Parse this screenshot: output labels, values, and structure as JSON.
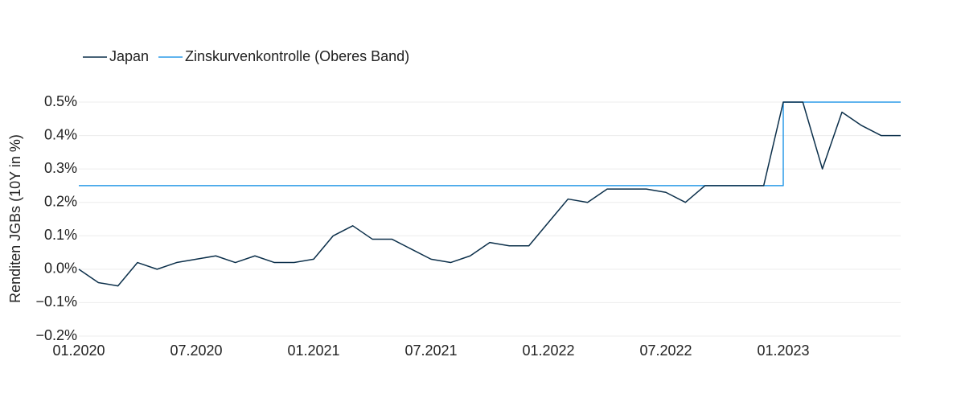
{
  "chart_data": {
    "type": "line",
    "y_label": "Renditen JGBs (10Y in %)",
    "x": [
      "2020-01",
      "2020-02",
      "2020-03",
      "2020-04",
      "2020-05",
      "2020-06",
      "2020-07",
      "2020-08",
      "2020-09",
      "2020-10",
      "2020-11",
      "2020-12",
      "2021-01",
      "2021-02",
      "2021-03",
      "2021-04",
      "2021-05",
      "2021-06",
      "2021-07",
      "2021-08",
      "2021-09",
      "2021-10",
      "2021-11",
      "2021-12",
      "2022-01",
      "2022-02",
      "2022-03",
      "2022-04",
      "2022-05",
      "2022-06",
      "2022-07",
      "2022-08",
      "2022-09",
      "2022-10",
      "2022-11",
      "2022-12",
      "2023-01",
      "2023-02",
      "2023-03",
      "2023-04",
      "2023-05",
      "2023-06",
      "2023-07"
    ],
    "series": [
      {
        "name": "Japan",
        "color": "#0b2f4a",
        "line_shape": "linear",
        "values": [
          0.0,
          -0.04,
          -0.05,
          0.02,
          0.0,
          0.02,
          0.03,
          0.04,
          0.02,
          0.04,
          0.02,
          0.02,
          0.03,
          0.1,
          0.13,
          0.09,
          0.09,
          0.06,
          0.03,
          0.02,
          0.04,
          0.08,
          0.07,
          0.07,
          0.14,
          0.21,
          0.2,
          0.24,
          0.24,
          0.24,
          0.23,
          0.2,
          0.25,
          0.25,
          0.25,
          0.25,
          0.5,
          0.5,
          0.3,
          0.47,
          0.43,
          0.4,
          0.4
        ]
      },
      {
        "name": "Zinskurvenkontrolle (Oberes Band)",
        "color": "#2b9be8",
        "line_shape": "hv",
        "values": [
          0.25,
          0.25,
          0.25,
          0.25,
          0.25,
          0.25,
          0.25,
          0.25,
          0.25,
          0.25,
          0.25,
          0.25,
          0.25,
          0.25,
          0.25,
          0.25,
          0.25,
          0.25,
          0.25,
          0.25,
          0.25,
          0.25,
          0.25,
          0.25,
          0.25,
          0.25,
          0.25,
          0.25,
          0.25,
          0.25,
          0.25,
          0.25,
          0.25,
          0.25,
          0.25,
          0.25,
          0.5,
          0.5,
          0.5,
          0.5,
          0.5,
          0.5,
          0.5
        ]
      }
    ],
    "xticks": [
      {
        "value": "2020-01",
        "label": "01.2020"
      },
      {
        "value": "2020-07",
        "label": "07.2020"
      },
      {
        "value": "2021-01",
        "label": "01.2021"
      },
      {
        "value": "2021-07",
        "label": "07.2021"
      },
      {
        "value": "2022-01",
        "label": "01.2022"
      },
      {
        "value": "2022-07",
        "label": "07.2022"
      },
      {
        "value": "2023-01",
        "label": "01.2023"
      }
    ],
    "ylim": [
      -0.2,
      0.5
    ],
    "yticks": [
      {
        "value": -0.2,
        "label": "−0.2%"
      },
      {
        "value": -0.1,
        "label": "−0.1%"
      },
      {
        "value": 0,
        "label": "0.0%"
      },
      {
        "value": 0.1,
        "label": "0.1%"
      },
      {
        "value": 0.2,
        "label": "0.2%"
      },
      {
        "value": 0.3,
        "label": "0.3%"
      },
      {
        "value": 0.4,
        "label": "0.4%"
      },
      {
        "value": 0.5,
        "label": "0.5%"
      }
    ],
    "grid": true,
    "legend": "top-left"
  }
}
